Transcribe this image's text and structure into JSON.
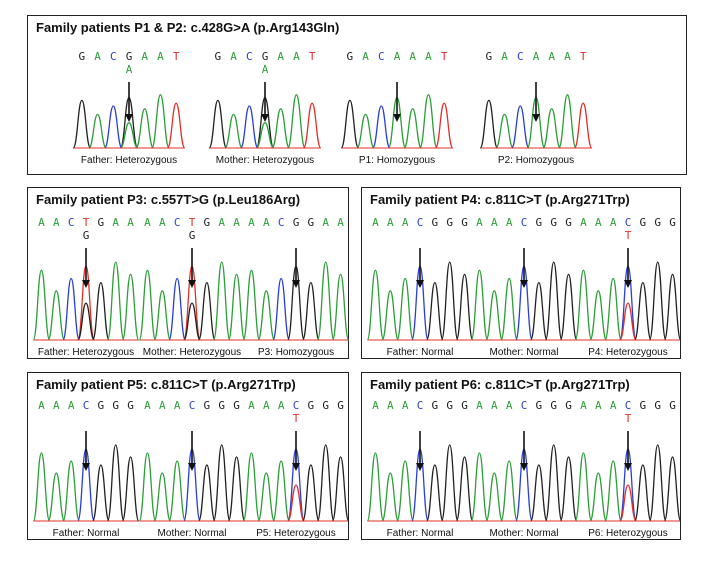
{
  "colors": {
    "A": "#2e9e3a",
    "C": "#2b3fd6",
    "G": "#222222",
    "T": "#e0302a"
  },
  "panels": [
    {
      "title": "Family patients P1 & P2: c.428G>A (p.Arg143Gln)",
      "traces": [
        {
          "seq": "GACGAAT",
          "mutant": "A",
          "caption": "Father: Heterozygous"
        },
        {
          "seq": "GACGAAT",
          "mutant": "A",
          "caption": "Mother: Heterozygous"
        },
        {
          "seq": "GACAAAT",
          "mutant": "",
          "caption": "P1: Homozygous"
        },
        {
          "seq": "GACAAAT",
          "mutant": "",
          "caption": "P2: Homozygous"
        }
      ]
    },
    {
      "title": "Family patient P3: c.557T>G (p.Leu186Arg)",
      "traces": [
        {
          "seq": "AACTGAA",
          "mutant": "G",
          "caption": "Father: Heterozygous"
        },
        {
          "seq": "AACTGAA",
          "mutant": "G",
          "caption": "Mother: Heterozygous"
        },
        {
          "seq": "AACGGAA",
          "mutant": "",
          "caption": "P3: Homozygous"
        }
      ]
    },
    {
      "title": "Family patient P4: c.811C>T (p.Arg271Trp)",
      "traces": [
        {
          "seq": "AAACGGG",
          "mutant": "",
          "caption": "Father: Normal"
        },
        {
          "seq": "AAACGGG",
          "mutant": "",
          "caption": "Mother: Normal"
        },
        {
          "seq": "AAACGGG",
          "mutant": "T",
          "caption": "P4: Heterozygous"
        }
      ]
    },
    {
      "title": "Family patient P5: c.811C>T (p.Arg271Trp)",
      "traces": [
        {
          "seq": "AAACGGG",
          "mutant": "",
          "caption": "Father: Normal"
        },
        {
          "seq": "AAACGGG",
          "mutant": "",
          "caption": "Mother: Normal"
        },
        {
          "seq": "AAACGGG",
          "mutant": "T",
          "caption": "P5: Heterozygous"
        }
      ]
    },
    {
      "title": "Family patient P6: c.811C>T (p.Arg271Trp)",
      "traces": [
        {
          "seq": "AAACGGG",
          "mutant": "",
          "caption": "Father: Normal"
        },
        {
          "seq": "AAACGGG",
          "mutant": "",
          "caption": "Mother: Normal"
        },
        {
          "seq": "AAACGGG",
          "mutant": "T",
          "caption": "P6: Heterozygous"
        }
      ]
    }
  ]
}
